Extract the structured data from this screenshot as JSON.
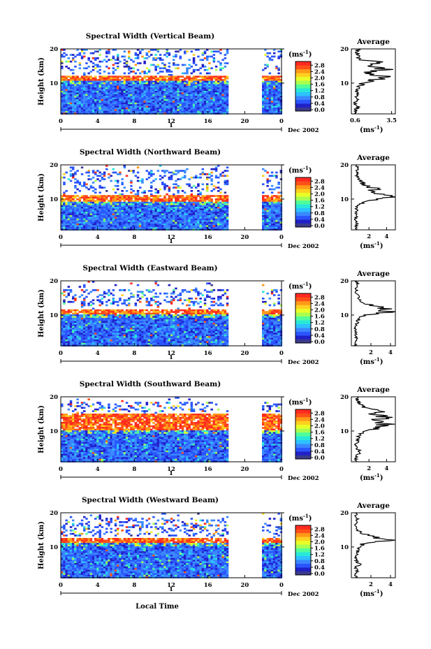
{
  "figure": {
    "x_axis_label": "Local Time",
    "y_axis_label": "Height (km)",
    "date_label": "Dec 2002",
    "colorbar_unit": "(ms",
    "colorbar_unit_exp": "-1",
    "colorbar_unit_close": ")",
    "average_title": "Average",
    "average_xlabel": "(ms",
    "average_xlabel_exp": "-1",
    "average_xlabel_close": ")",
    "day_marker": "1",
    "colorbar_ticks": [
      "0.0",
      "0.4",
      "0.8",
      "1.2",
      "1.6",
      "2.0",
      "2.4",
      "2.8"
    ],
    "colorbar_colors": [
      "#3a3a8c",
      "#2020c8",
      "#2a55ff",
      "#3a88ff",
      "#2cc2ff",
      "#28e8d8",
      "#50ff9a",
      "#a8ff50",
      "#e8ff28",
      "#ffd020",
      "#ff9a18",
      "#ff5018",
      "#ff2a20"
    ]
  },
  "chart_data": [
    {
      "type": "heatmap",
      "title": "Spectral Width (Vertical Beam)",
      "xlabel": "",
      "ylabel": "Height (km)",
      "x_ticks": [
        "0",
        "4",
        "8",
        "12",
        "16",
        "20",
        "0"
      ],
      "xlim": [
        0,
        24
      ],
      "y_ticks": [
        "10",
        "20"
      ],
      "ylim": [
        1,
        20
      ],
      "data_gaps": [
        [
          18,
          21.8
        ]
      ],
      "high_layers": [
        [
          11,
          12.5
        ]
      ],
      "upper_noise": [
        [
          13,
          20
        ]
      ],
      "average_profile": {
        "title": "Average",
        "x_ticks": [
          "0.6",
          "3.5"
        ],
        "xlim": [
          0.3,
          3.8
        ],
        "y_ticks": [
          "10",
          "20"
        ],
        "ylim": [
          1,
          20
        ],
        "height": [
          1,
          2,
          3,
          4,
          5,
          6,
          7,
          8,
          9,
          10,
          11,
          12,
          13,
          14,
          15,
          16,
          17,
          18,
          19,
          20
        ],
        "width": [
          0.7,
          0.6,
          0.8,
          0.6,
          0.7,
          0.6,
          0.7,
          0.8,
          0.9,
          1.2,
          2.2,
          2.9,
          1.6,
          2.8,
          1.7,
          2.5,
          1.0,
          0.9,
          0.8,
          0.8
        ]
      }
    },
    {
      "type": "heatmap",
      "title": "Spectral Width (Northward Beam)",
      "xlabel": "",
      "ylabel": "Height (km)",
      "x_ticks": [
        "0",
        "4",
        "8",
        "12",
        "16",
        "20",
        "0"
      ],
      "xlim": [
        0,
        24
      ],
      "y_ticks": [
        "10",
        "20"
      ],
      "ylim": [
        1,
        20
      ],
      "data_gaps": [
        [
          18,
          21.8
        ]
      ],
      "high_layers": [
        [
          9.5,
          11.5
        ]
      ],
      "upper_noise": [
        [
          12,
          19
        ]
      ],
      "average_profile": {
        "title": "Average",
        "x_ticks": [
          "2",
          "4"
        ],
        "xlim": [
          0,
          5
        ],
        "y_ticks": [
          "10",
          "20"
        ],
        "ylim": [
          1,
          20
        ],
        "height": [
          1,
          2,
          3,
          4,
          5,
          6,
          7,
          8,
          9,
          10,
          11,
          12,
          13,
          14,
          15,
          16,
          17,
          18,
          19,
          20
        ],
        "width": [
          0.6,
          0.5,
          0.7,
          0.5,
          0.6,
          0.5,
          0.6,
          0.7,
          1.4,
          3.6,
          4.2,
          2.2,
          2.9,
          1.8,
          1.0,
          0.8,
          0.6,
          0.6,
          0.7,
          0.6
        ]
      }
    },
    {
      "type": "heatmap",
      "title": "Spectral Width (Eastward Beam)",
      "xlabel": "",
      "ylabel": "Height (km)",
      "x_ticks": [
        "0",
        "4",
        "8",
        "12",
        "16",
        "20",
        "0"
      ],
      "xlim": [
        0,
        24
      ],
      "y_ticks": [
        "10",
        "20"
      ],
      "ylim": [
        1,
        20
      ],
      "data_gaps": [
        [
          18,
          21.8
        ]
      ],
      "high_layers": [
        [
          10.5,
          12
        ]
      ],
      "upper_noise": [
        [
          13,
          18
        ]
      ],
      "average_profile": {
        "title": "Average",
        "x_ticks": [
          "2",
          "4"
        ],
        "xlim": [
          0,
          4.5
        ],
        "y_ticks": [
          "10",
          "20"
        ],
        "ylim": [
          1,
          20
        ],
        "height": [
          1,
          2,
          3,
          4,
          5,
          6,
          7,
          8,
          9,
          10,
          11,
          12,
          13,
          14,
          15,
          16,
          17,
          18,
          19,
          20
        ],
        "width": [
          0.5,
          0.4,
          0.6,
          0.4,
          0.5,
          0.4,
          0.5,
          0.6,
          0.8,
          1.6,
          3.8,
          3.2,
          2.0,
          1.1,
          0.7,
          0.6,
          0.5,
          0.5,
          0.6,
          0.5
        ]
      }
    },
    {
      "type": "heatmap",
      "title": "Spectral Width (Southward Beam)",
      "xlabel": "",
      "ylabel": "Height (km)",
      "x_ticks": [
        "0",
        "4",
        "8",
        "12",
        "16",
        "20",
        "0"
      ],
      "xlim": [
        0,
        24
      ],
      "y_ticks": [
        "10",
        "20"
      ],
      "ylim": [
        1,
        20
      ],
      "data_gaps": [
        [
          18,
          21.8
        ]
      ],
      "high_layers": [
        [
          10.5,
          15.5
        ]
      ],
      "upper_noise": [
        [
          16,
          19
        ]
      ],
      "average_profile": {
        "title": "Average",
        "x_ticks": [
          "2",
          "4"
        ],
        "xlim": [
          0,
          5
        ],
        "y_ticks": [
          "10",
          "20"
        ],
        "ylim": [
          1,
          20
        ],
        "height": [
          1,
          2,
          3,
          4,
          5,
          6,
          7,
          8,
          9,
          10,
          11,
          12,
          13,
          14,
          15,
          16,
          17,
          18,
          19,
          20
        ],
        "width": [
          0.6,
          0.5,
          0.7,
          1.0,
          0.6,
          0.5,
          0.7,
          0.8,
          1.0,
          1.6,
          3.2,
          4.0,
          2.6,
          3.8,
          2.4,
          3.6,
          1.5,
          0.9,
          0.7,
          0.6
        ]
      }
    },
    {
      "type": "heatmap",
      "title": "Spectral Width (Westward Beam)",
      "xlabel": "Local Time",
      "ylabel": "Height (km)",
      "x_ticks": [
        "0",
        "4",
        "8",
        "12",
        "16",
        "20",
        "0"
      ],
      "xlim": [
        0,
        24
      ],
      "y_ticks": [
        "10",
        "20"
      ],
      "ylim": [
        1,
        20
      ],
      "data_gaps": [
        [
          18,
          21.8
        ]
      ],
      "high_layers": [
        [
          11.5,
          13
        ]
      ],
      "upper_noise": [
        [
          13.5,
          19
        ]
      ],
      "average_profile": {
        "title": "Average",
        "x_ticks": [
          "2",
          "4"
        ],
        "xlim": [
          0,
          4.5
        ],
        "y_ticks": [
          "10",
          "20"
        ],
        "ylim": [
          1,
          20
        ],
        "height": [
          1,
          2,
          3,
          4,
          5,
          6,
          7,
          8,
          9,
          10,
          11,
          12,
          13,
          14,
          15,
          16,
          17,
          18,
          19,
          20
        ],
        "width": [
          0.5,
          0.4,
          0.6,
          0.4,
          0.9,
          0.5,
          0.5,
          0.6,
          0.7,
          0.9,
          1.2,
          3.6,
          2.4,
          1.0,
          0.6,
          0.5,
          0.5,
          0.6,
          0.5,
          0.5
        ]
      }
    }
  ]
}
